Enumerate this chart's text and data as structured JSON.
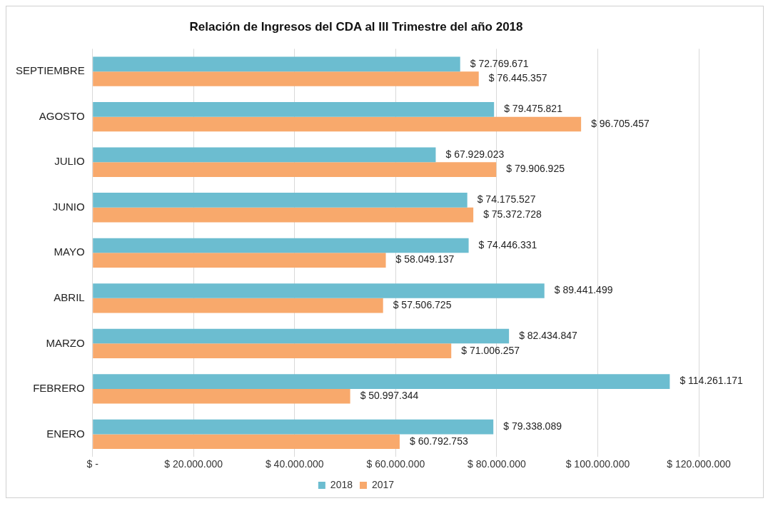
{
  "chart_data": {
    "type": "bar",
    "orientation": "horizontal",
    "title": "Relación de Ingresos del CDA al III Trimestre del año 2018",
    "categories": [
      "SEPTIEMBRE",
      "AGOSTO",
      "JULIO",
      "JUNIO",
      "MAYO",
      "ABRIL",
      "MARZO",
      "FEBRERO",
      "ENERO"
    ],
    "series": [
      {
        "name": "2018",
        "color": "#6cbdd0",
        "values": [
          72769671,
          79475821,
          67929023,
          74175527,
          74446331,
          89441499,
          82434847,
          114261171,
          79338089
        ],
        "value_labels": [
          "$ 72.769.671",
          "$ 79.475.821",
          "$ 67.929.023",
          "$ 74.175.527",
          "$ 74.446.331",
          "$ 89.441.499",
          "$ 82.434.847",
          "$ 114.261.171",
          "$ 79.338.089"
        ]
      },
      {
        "name": "2017",
        "color": "#f8a96c",
        "values": [
          76445357,
          96705457,
          79906925,
          75372728,
          58049137,
          57506725,
          71006257,
          50997344,
          60792753
        ],
        "value_labels": [
          "$ 76.445.357",
          "$ 96.705.457",
          "$ 79.906.925",
          "$ 75.372.728",
          "$ 58.049.137",
          "$ 57.506.725",
          "$ 71.006.257",
          "$ 50.997.344",
          "$ 60.792.753"
        ]
      }
    ],
    "xlim": [
      0,
      120000000
    ],
    "xticks": [
      {
        "value": 0,
        "label": "$ -"
      },
      {
        "value": 20000000,
        "label": "$ 20.000.000"
      },
      {
        "value": 40000000,
        "label": "$ 40.000.000"
      },
      {
        "value": 60000000,
        "label": "$ 60.000.000"
      },
      {
        "value": 80000000,
        "label": "$ 80.000.000"
      },
      {
        "value": 100000000,
        "label": "$ 100.000.000"
      },
      {
        "value": 120000000,
        "label": "$ 120.000.000"
      }
    ],
    "grid": "x",
    "legend": "bottom"
  }
}
